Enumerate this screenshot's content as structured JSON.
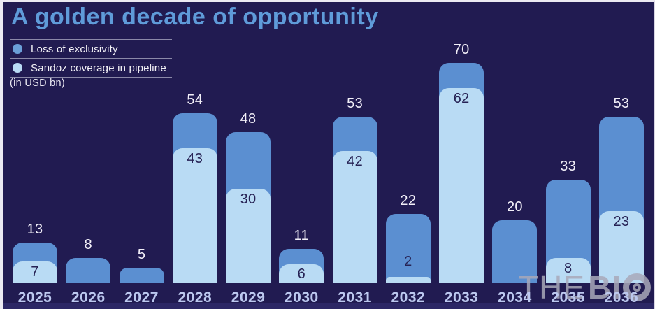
{
  "title": "A golden decade of opportunity",
  "legend": {
    "items": [
      {
        "label": "Loss of exclusivity",
        "color": "#6b9fd8"
      },
      {
        "label": "Sandoz coverage in pipeline",
        "color": "#b9dbf4"
      }
    ]
  },
  "unit_note": "(in USD bn)",
  "watermark": {
    "the": "THE",
    "bi": "BI"
  },
  "chart_data": {
    "type": "bar",
    "stacked_overlay": true,
    "title": "A golden decade of opportunity",
    "unit": "USD bn",
    "categories": [
      "2025",
      "2026",
      "2027",
      "2028",
      "2029",
      "2030",
      "2031",
      "2032",
      "2033",
      "2034",
      "2035",
      "2036"
    ],
    "series": [
      {
        "name": "Loss of exclusivity",
        "role": "total",
        "color": "#5b8fd1",
        "values": [
          13,
          8,
          5,
          54,
          48,
          11,
          53,
          22,
          70,
          20,
          33,
          53
        ]
      },
      {
        "name": "Sandoz coverage in pipeline",
        "role": "overlay",
        "color": "#b9dbf4",
        "values": [
          7,
          null,
          null,
          43,
          30,
          6,
          42,
          2,
          62,
          null,
          8,
          23
        ]
      }
    ],
    "value_labels": "shown above bars (total) and inside light segments (overlay)",
    "ylim": [
      0,
      70
    ],
    "grid": false,
    "legend_position": "top-left",
    "background_color": "#211b51"
  }
}
